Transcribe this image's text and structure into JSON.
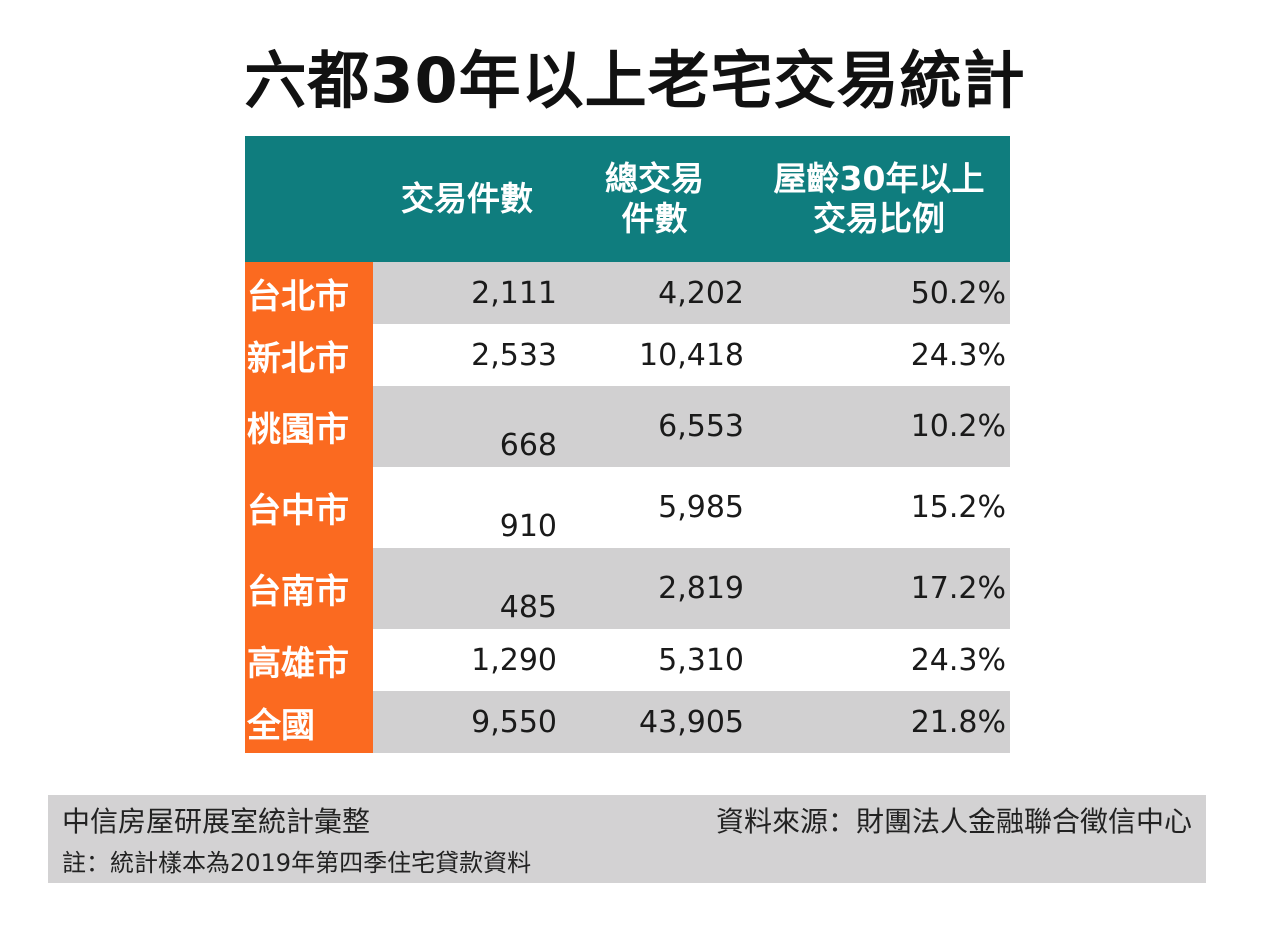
{
  "chart_data": {
    "type": "table",
    "title": "六都30年以上老宅交易統計",
    "columns": [
      {
        "lines": [
          ""
        ]
      },
      {
        "lines": [
          "交易件數"
        ]
      },
      {
        "lines": [
          "總交易",
          "件數"
        ]
      },
      {
        "lines": [
          "屋齡30年以上",
          "交易比例"
        ]
      }
    ],
    "rows": [
      {
        "city": "台北市",
        "transactions": "2,111",
        "total": "4,202",
        "ratio": "50.2%"
      },
      {
        "city": "新北市",
        "transactions": "2,533",
        "total": "10,418",
        "ratio": "24.3%"
      },
      {
        "city": "桃園市",
        "transactions": "668",
        "total": "6,553",
        "ratio": "10.2%"
      },
      {
        "city": "台中市",
        "transactions": "910",
        "total": "5,985",
        "ratio": "15.2%"
      },
      {
        "city": "台南市",
        "transactions": "485",
        "total": "2,819",
        "ratio": "17.2%"
      },
      {
        "city": "高雄市",
        "transactions": "1,290",
        "total": "5,310",
        "ratio": "24.3%"
      },
      {
        "city": "全國",
        "transactions": "9,550",
        "total": "43,905",
        "ratio": "21.8%"
      }
    ]
  },
  "footer": {
    "compiler": "中信房屋研展室統計彙整",
    "source": "資料來源：財團法人金融聯合徵信中心",
    "note": "註：統計樣本為2019年第四季住宅貸款資料"
  },
  "colors": {
    "header_bg": "#0f7d7e",
    "label_bg": "#fb6a20",
    "row_shade": "#d1d0d1"
  }
}
